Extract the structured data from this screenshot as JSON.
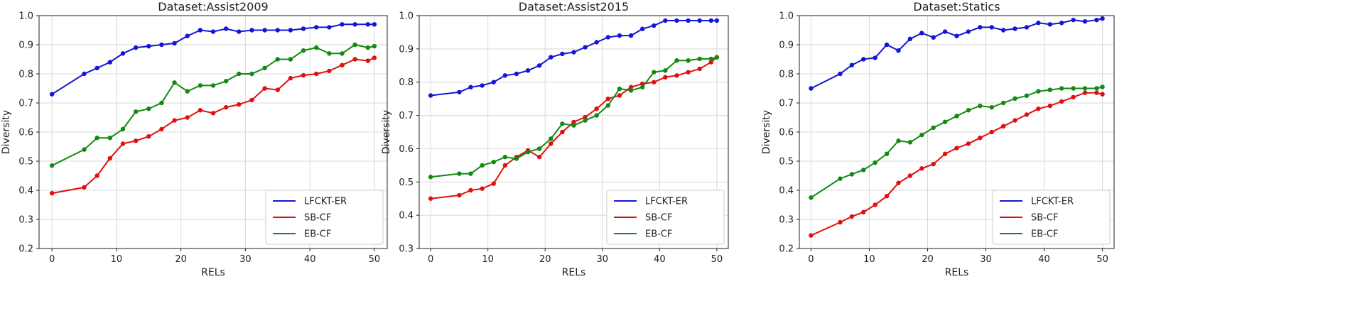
{
  "chart_data": [
    {
      "type": "line",
      "title": "Dataset:Assist2009",
      "xlabel": "RELs",
      "ylabel": "Diversity",
      "xlim": [
        -2,
        52
      ],
      "ylim": [
        0.2,
        1.0
      ],
      "xticks": [
        0,
        10,
        20,
        30,
        40,
        50
      ],
      "yticks": [
        0.2,
        0.3,
        0.4,
        0.5,
        0.6,
        0.7,
        0.8,
        0.9,
        1.0
      ],
      "grid": true,
      "legend_position": "lower-right",
      "x": [
        0,
        5,
        7,
        9,
        11,
        13,
        15,
        17,
        19,
        21,
        23,
        25,
        27,
        29,
        31,
        33,
        35,
        37,
        39,
        41,
        43,
        45,
        47,
        49,
        50
      ],
      "series": [
        {
          "name": "LFCKT-ER",
          "color": "#1515d6",
          "values": [
            0.73,
            0.8,
            0.82,
            0.84,
            0.87,
            0.89,
            0.895,
            0.9,
            0.905,
            0.93,
            0.95,
            0.945,
            0.955,
            0.945,
            0.95,
            0.95,
            0.95,
            0.95,
            0.955,
            0.96,
            0.96,
            0.97,
            0.97,
            0.97,
            0.97
          ]
        },
        {
          "name": "SB-CF",
          "color": "#e01010",
          "values": [
            0.39,
            0.41,
            0.45,
            0.51,
            0.56,
            0.57,
            0.585,
            0.61,
            0.64,
            0.65,
            0.675,
            0.665,
            0.685,
            0.695,
            0.71,
            0.75,
            0.745,
            0.785,
            0.795,
            0.8,
            0.81,
            0.83,
            0.85,
            0.845,
            0.855
          ]
        },
        {
          "name": "EB-CF",
          "color": "#128a12",
          "values": [
            0.485,
            0.54,
            0.58,
            0.58,
            0.61,
            0.67,
            0.68,
            0.7,
            0.77,
            0.74,
            0.76,
            0.76,
            0.775,
            0.8,
            0.8,
            0.82,
            0.85,
            0.85,
            0.88,
            0.89,
            0.87,
            0.87,
            0.9,
            0.89,
            0.895
          ]
        }
      ]
    },
    {
      "type": "line",
      "title": "Dataset:Assist2015",
      "xlabel": "RELs",
      "ylabel": "Diversity",
      "xlim": [
        -2,
        52
      ],
      "ylim": [
        0.3,
        1.0
      ],
      "xticks": [
        0,
        10,
        20,
        30,
        40,
        50
      ],
      "yticks": [
        0.3,
        0.4,
        0.5,
        0.6,
        0.7,
        0.8,
        0.9,
        1.0
      ],
      "grid": true,
      "legend_position": "lower-right",
      "x": [
        0,
        5,
        7,
        9,
        11,
        13,
        15,
        17,
        19,
        21,
        23,
        25,
        27,
        29,
        31,
        33,
        35,
        37,
        39,
        41,
        43,
        45,
        47,
        49,
        50
      ],
      "series": [
        {
          "name": "LFCKT-ER",
          "color": "#1515d6",
          "values": [
            0.76,
            0.77,
            0.785,
            0.79,
            0.8,
            0.82,
            0.825,
            0.835,
            0.85,
            0.875,
            0.885,
            0.89,
            0.905,
            0.92,
            0.935,
            0.94,
            0.94,
            0.96,
            0.97,
            0.985,
            0.985,
            0.985,
            0.985,
            0.985,
            0.985
          ]
        },
        {
          "name": "SB-CF",
          "color": "#e01010",
          "values": [
            0.45,
            0.46,
            0.475,
            0.48,
            0.495,
            0.55,
            0.575,
            0.595,
            0.575,
            0.615,
            0.65,
            0.68,
            0.695,
            0.72,
            0.75,
            0.76,
            0.785,
            0.795,
            0.8,
            0.815,
            0.82,
            0.83,
            0.84,
            0.86,
            0.875
          ]
        },
        {
          "name": "EB-CF",
          "color": "#128a12",
          "values": [
            0.515,
            0.525,
            0.525,
            0.55,
            0.56,
            0.575,
            0.57,
            0.59,
            0.6,
            0.63,
            0.675,
            0.67,
            0.685,
            0.7,
            0.73,
            0.78,
            0.775,
            0.785,
            0.83,
            0.835,
            0.865,
            0.865,
            0.87,
            0.87,
            0.875
          ]
        }
      ]
    },
    {
      "type": "line",
      "title": "Dataset:Statics",
      "xlabel": "RELs",
      "ylabel": "Diversity",
      "xlim": [
        -2,
        52
      ],
      "ylim": [
        0.2,
        1.0
      ],
      "xticks": [
        0,
        10,
        20,
        30,
        40,
        50
      ],
      "yticks": [
        0.2,
        0.3,
        0.4,
        0.5,
        0.6,
        0.7,
        0.8,
        0.9,
        1.0
      ],
      "grid": true,
      "legend_position": "lower-right",
      "x": [
        0,
        5,
        7,
        9,
        11,
        13,
        15,
        17,
        19,
        21,
        23,
        25,
        27,
        29,
        31,
        33,
        35,
        37,
        39,
        41,
        43,
        45,
        47,
        49,
        50
      ],
      "series": [
        {
          "name": "LFCKT-ER",
          "color": "#1515d6",
          "values": [
            0.75,
            0.8,
            0.83,
            0.85,
            0.855,
            0.9,
            0.88,
            0.92,
            0.94,
            0.925,
            0.945,
            0.93,
            0.945,
            0.96,
            0.96,
            0.95,
            0.955,
            0.96,
            0.975,
            0.97,
            0.975,
            0.985,
            0.98,
            0.985,
            0.99
          ]
        },
        {
          "name": "SB-CF",
          "color": "#e01010",
          "values": [
            0.245,
            0.29,
            0.31,
            0.325,
            0.35,
            0.38,
            0.425,
            0.45,
            0.475,
            0.49,
            0.525,
            0.545,
            0.56,
            0.58,
            0.6,
            0.62,
            0.64,
            0.66,
            0.68,
            0.69,
            0.705,
            0.72,
            0.735,
            0.735,
            0.73
          ]
        },
        {
          "name": "EB-CF",
          "color": "#128a12",
          "values": [
            0.375,
            0.44,
            0.455,
            0.47,
            0.495,
            0.525,
            0.57,
            0.565,
            0.59,
            0.615,
            0.635,
            0.655,
            0.675,
            0.69,
            0.685,
            0.7,
            0.715,
            0.725,
            0.74,
            0.745,
            0.75,
            0.75,
            0.75,
            0.75,
            0.755
          ]
        }
      ]
    }
  ]
}
